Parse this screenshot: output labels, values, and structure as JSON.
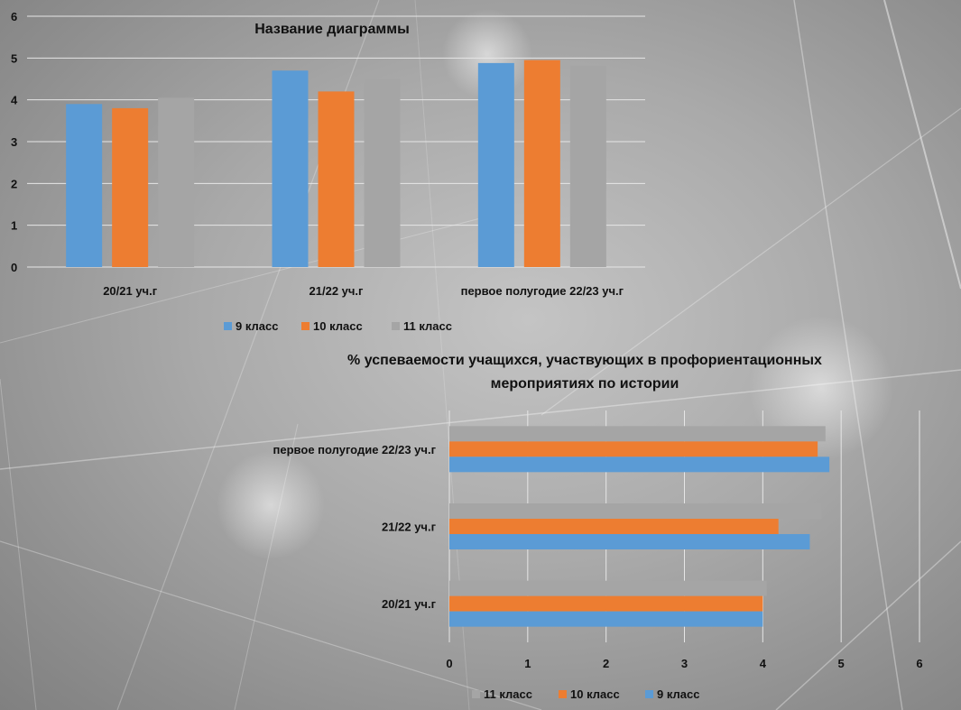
{
  "colors": {
    "9 класс": "#5b9bd5",
    "10 класс": "#ed7d31",
    "11 класс": "#a5a5a5"
  },
  "chart_data": [
    {
      "type": "bar",
      "orientation": "vertical",
      "title": "Название диаграммы",
      "categories": [
        "20/21 уч.г",
        "21/22 уч.г",
        "первое полугодие 22/23 уч.г"
      ],
      "series": [
        {
          "name": "9 класс",
          "values": [
            3.9,
            4.7,
            4.88
          ]
        },
        {
          "name": "10 класс",
          "values": [
            3.8,
            4.2,
            4.95
          ]
        },
        {
          "name": "11 класс",
          "values": [
            4.05,
            4.5,
            4.82
          ]
        }
      ],
      "ylim": [
        0,
        6
      ],
      "yticks": [
        "0",
        "1",
        "2",
        "3",
        "4",
        "5",
        "6"
      ],
      "grid": true,
      "legend": "bottom"
    },
    {
      "type": "bar",
      "orientation": "horizontal",
      "title": "% успеваемости учащихся, участвующих в профориентационных мероприятиях по истории",
      "title_lines": [
        "% успеваемости учащихся, участвующих в профориентационных",
        "мероприятиях по истории"
      ],
      "categories": [
        "20/21 уч.г",
        "21/22 уч.г",
        "первое полугодие 22/23 уч.г"
      ],
      "series": [
        {
          "name": "9 класс",
          "values": [
            4.0,
            4.6,
            4.85
          ]
        },
        {
          "name": "10 класс",
          "values": [
            4.0,
            4.2,
            4.7
          ]
        },
        {
          "name": "11 класс",
          "values": [
            4.05,
            4.75,
            4.8
          ]
        }
      ],
      "xlim": [
        0,
        6
      ],
      "xticks": [
        "0",
        "1",
        "2",
        "3",
        "4",
        "5",
        "6"
      ],
      "grid": true,
      "legend": "bottom",
      "legend_order": [
        "11 класс",
        "10 класс",
        "9 класс"
      ]
    }
  ]
}
